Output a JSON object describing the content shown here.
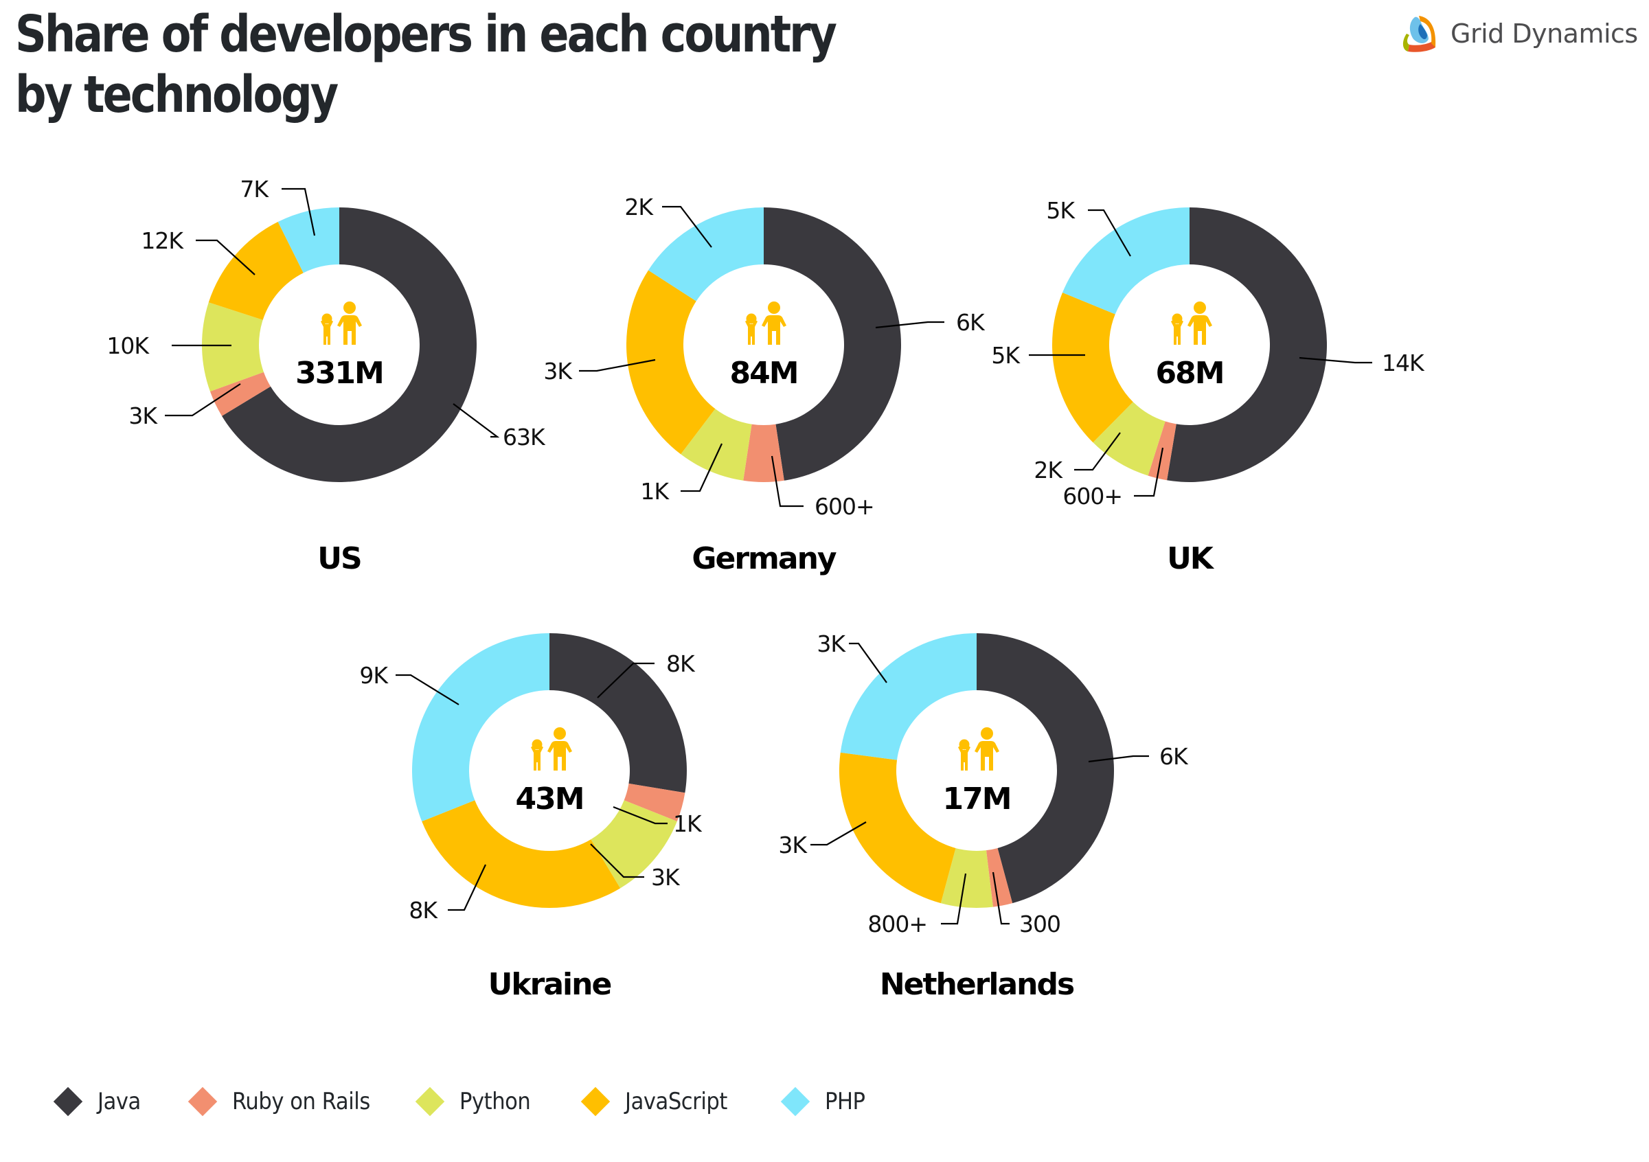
{
  "title_line1": "Share of developers in each country",
  "title_line2": "by technology",
  "brand": {
    "name": "Grid Dynamics",
    "colors": [
      "#a8b400",
      "#f39200",
      "#e8562a",
      "#6ec1ea",
      "#1d6fb8"
    ]
  },
  "legend": [
    {
      "name": "Java",
      "color": "#3a393e"
    },
    {
      "name": "Ruby on Rails",
      "color": "#f28f70"
    },
    {
      "name": "Python",
      "color": "#dde55c"
    },
    {
      "name": "JavaScript",
      "color": "#ffbf00"
    },
    {
      "name": "PHP",
      "color": "#7fe6fb"
    }
  ],
  "chart_data": {
    "type": "pie",
    "subtype": "donut",
    "title": "Share of developers in each country by technology",
    "series_order": [
      "Java",
      "Ruby on Rails",
      "Python",
      "JavaScript",
      "PHP"
    ],
    "legend_position": "bottom-left",
    "center_icon": "family-icon",
    "charts": [
      {
        "country": "US",
        "population_label": "331M",
        "values": [
          63000,
          3000,
          10000,
          12000,
          7000
        ],
        "labels": [
          "63K",
          "3K",
          "10K",
          "12K",
          "7K"
        ]
      },
      {
        "country": "Germany",
        "population_label": "84M",
        "values": [
          6000,
          600,
          1000,
          3000,
          2000
        ],
        "labels": [
          "6K",
          "600+",
          "1K",
          "3K",
          "2K"
        ]
      },
      {
        "country": "UK",
        "population_label": "68M",
        "values": [
          14000,
          600,
          2000,
          5000,
          5000
        ],
        "labels": [
          "14K",
          "600+",
          "2K",
          "5K",
          "5K"
        ]
      },
      {
        "country": "Ukraine",
        "population_label": "43M",
        "values": [
          8000,
          1000,
          3000,
          8000,
          9000
        ],
        "labels": [
          "8K",
          "1K",
          "3K",
          "8K",
          "9K"
        ]
      },
      {
        "country": "Netherlands",
        "population_label": "17M",
        "values": [
          6000,
          300,
          800,
          3000,
          3000
        ],
        "labels": [
          "6K",
          "300",
          "800+",
          "3K",
          "3K"
        ]
      }
    ]
  }
}
